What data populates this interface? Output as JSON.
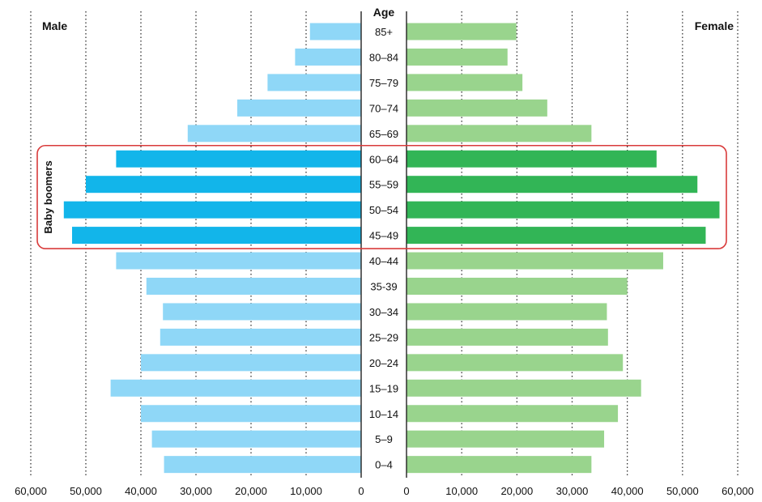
{
  "chart_data": {
    "type": "bar",
    "orientation": "horizontal-population-pyramid",
    "center_label": "Age",
    "left_title": "Male",
    "right_title": "Female",
    "categories": [
      "85+",
      "80–84",
      "75–79",
      "70–74",
      "65–69",
      "60–64",
      "55–59",
      "50–54",
      "45–49",
      "40–44",
      "35-39",
      "30–34",
      "25–29",
      "20–24",
      "15–19",
      "10–14",
      "5–9",
      "0–4"
    ],
    "series": [
      {
        "name": "Male",
        "values": [
          9300,
          12000,
          17000,
          22500,
          31500,
          44500,
          50000,
          54000,
          52500,
          44500,
          39000,
          36000,
          36500,
          40000,
          45500,
          40000,
          38000,
          35800
        ],
        "color": "#8fd7f7",
        "highlight_color": "#12b5ea"
      },
      {
        "name": "Female",
        "values": [
          19900,
          18300,
          21000,
          25500,
          33500,
          45300,
          52700,
          56700,
          54200,
          46500,
          40000,
          36300,
          36500,
          39200,
          42500,
          38300,
          35800,
          33500
        ],
        "color": "#99d48d",
        "highlight_color": "#32b556"
      }
    ],
    "xlim": [
      0,
      60000
    ],
    "left_ticks": [
      "60,000",
      "50,000",
      "40,000",
      "30,000",
      "20,000",
      "10,000",
      "0"
    ],
    "right_ticks": [
      "0",
      "10,000",
      "20,000",
      "30,000",
      "40,000",
      "50,000",
      "60,000"
    ],
    "tick_values": [
      0,
      10000,
      20000,
      30000,
      40000,
      50000,
      60000
    ],
    "grid": "vertical-dotted",
    "highlight": {
      "label": "Baby boomers",
      "categories": [
        "60–64",
        "55–59",
        "50–54",
        "45–49"
      ],
      "box_color": "#d93b3b"
    }
  }
}
